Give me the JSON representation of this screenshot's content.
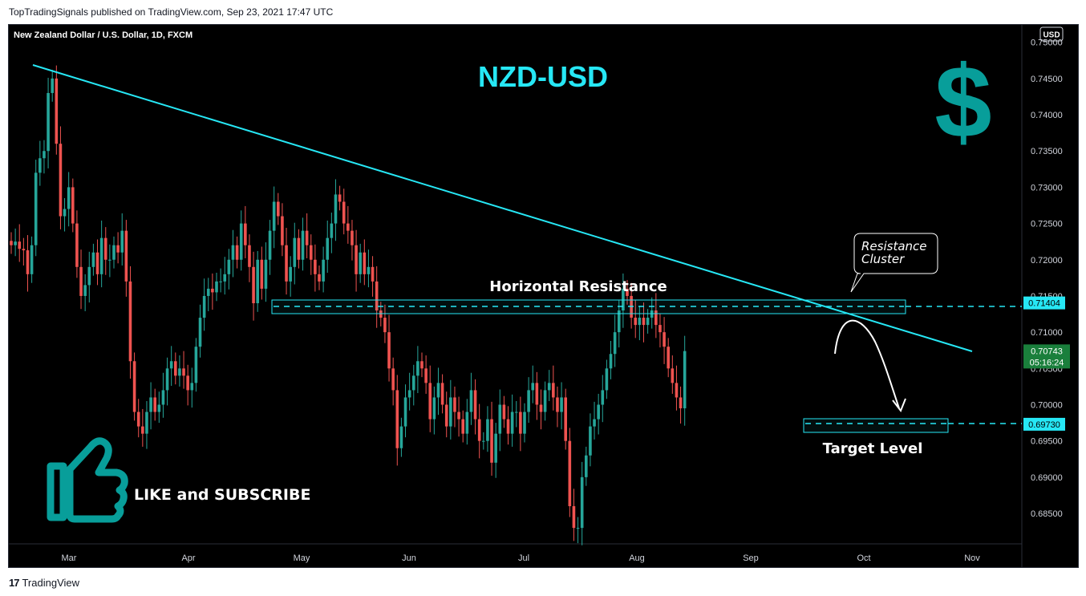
{
  "header": {
    "published_by": "TopTradingSignals published on TradingView.com, Sep 23, 2021 17:47 UTC"
  },
  "footer": {
    "logo_glyph": "17",
    "brand": "TradingView"
  },
  "chart_data": {
    "type": "candlestick",
    "title": "NZD-USD",
    "symbol_info": "New Zealand Dollar / U.S. Dollar, 1D, FXCM",
    "currency": "USD",
    "ylim": [
      0.6808,
      0.7524
    ],
    "y_ticks": [
      "0.75000",
      "0.74500",
      "0.74000",
      "0.73500",
      "0.73000",
      "0.72500",
      "0.72000",
      "0.71500",
      "0.71000",
      "0.70500",
      "0.70000",
      "0.69500",
      "0.69000",
      "0.68500"
    ],
    "x_ticks": [
      "Mar",
      "Apr",
      "May",
      "Jun",
      "Jul",
      "Aug",
      "Sep",
      "Oct",
      "Nov"
    ],
    "grid": false,
    "colors": {
      "up": "#26a69a",
      "down": "#ef5350",
      "accent": "#26e7f5",
      "teal_icon": "#089e9a"
    },
    "closes": [
      0.722,
      0.7225,
      0.7215,
      0.7213,
      0.718,
      0.722,
      0.732,
      0.734,
      0.735,
      0.743,
      0.745,
      0.736,
      0.726,
      0.727,
      0.73,
      0.725,
      0.719,
      0.715,
      0.7165,
      0.719,
      0.721,
      0.718,
      0.723,
      0.72,
      0.72,
      0.722,
      0.721,
      0.724,
      0.717,
      0.706,
      0.699,
      0.697,
      0.696,
      0.699,
      0.701,
      0.699,
      0.7,
      0.702,
      0.705,
      0.706,
      0.704,
      0.705,
      0.704,
      0.702,
      0.703,
      0.708,
      0.712,
      0.715,
      0.716,
      0.7155,
      0.717,
      0.717,
      0.718,
      0.72,
      0.722,
      0.72,
      0.725,
      0.722,
      0.719,
      0.714,
      0.72,
      0.716,
      0.72,
      0.724,
      0.728,
      0.726,
      0.722,
      0.717,
      0.719,
      0.723,
      0.72,
      0.724,
      0.722,
      0.72,
      0.718,
      0.717,
      0.72,
      0.723,
      0.725,
      0.729,
      0.728,
      0.725,
      0.724,
      0.722,
      0.718,
      0.721,
      0.718,
      0.719,
      0.717,
      0.713,
      0.712,
      0.71,
      0.705,
      0.702,
      0.694,
      0.697,
      0.701,
      0.702,
      0.704,
      0.706,
      0.705,
      0.703,
      0.698,
      0.701,
      0.703,
      0.7,
      0.697,
      0.701,
      0.699,
      0.698,
      0.696,
      0.699,
      0.702,
      0.698,
      0.695,
      0.695,
      0.698,
      0.692,
      0.696,
      0.7,
      0.698,
      0.696,
      0.699,
      0.699,
      0.696,
      0.699,
      0.702,
      0.703,
      0.7,
      0.699,
      0.702,
      0.703,
      0.701,
      0.699,
      0.701,
      0.695,
      0.686,
      0.683,
      0.683,
      0.69,
      0.693,
      0.697,
      0.698,
      0.7,
      0.702,
      0.705,
      0.707,
      0.71,
      0.713,
      0.716,
      0.715,
      0.712,
      0.711,
      0.712,
      0.711,
      0.712,
      0.713,
      0.711,
      0.71,
      0.708,
      0.705,
      0.703,
      0.701,
      0.6995,
      0.7074
    ],
    "horizontal_levels": [
      {
        "label": "0.71404",
        "value": 0.71404
      },
      {
        "label": "0.69730",
        "value": 0.6973
      }
    ],
    "last_price": {
      "label": "0.70743",
      "countdown": "05:16:24",
      "value": 0.70743
    },
    "annotations": {
      "horizontal_resistance": "Horizontal Resistance",
      "resistance_cluster": "Resistance Cluster",
      "target_level": "Target Level",
      "like_subscribe": "LIKE and SUBSCRIBE",
      "dollar_sign": "$"
    }
  }
}
